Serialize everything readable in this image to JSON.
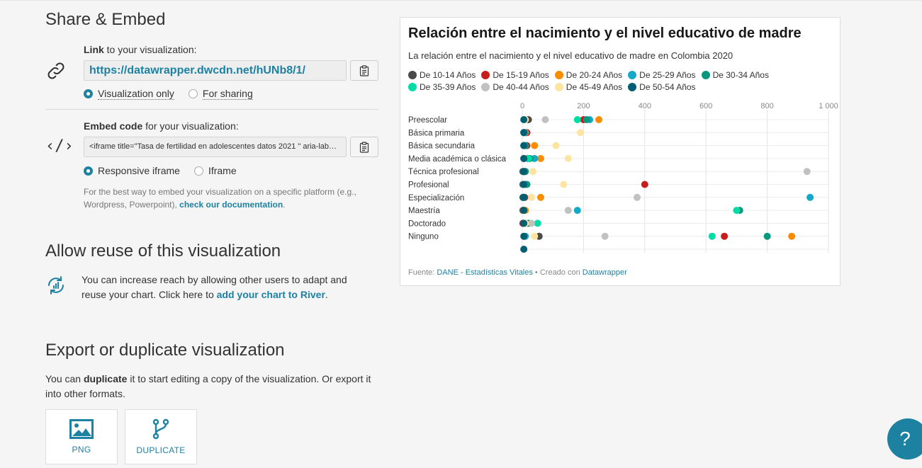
{
  "share": {
    "heading": "Share & Embed",
    "link_label_bold": "Link",
    "link_label_rest": " to your visualization:",
    "url": "https://datawrapper.dwcdn.net/hUNb8/1/",
    "link_options": [
      "Visualization only",
      "For sharing"
    ],
    "link_selected": "Visualization only",
    "embed_label_bold": "Embed code",
    "embed_label_rest": " for your visualization:",
    "embed_code": "<iframe title=\"Tasa de fertilidad en adolescentes datos 2021 \" aria-label=\"Dot Plot\"",
    "embed_options": [
      "Responsive iframe",
      "Iframe"
    ],
    "embed_selected": "Responsive iframe",
    "hint_text": "For the best way to embed your visualization on a specific platform (e.g., Wordpress, Powerpoint), ",
    "hint_link": "check our documentation",
    "hint_end": "."
  },
  "reuse": {
    "heading": "Allow reuse of this visualization",
    "text": "You can increase reach by allowing other users to adapt and reuse your chart. Click here to ",
    "link": "add your chart to River",
    "end": "."
  },
  "export": {
    "heading": "Export or duplicate visualization",
    "text_pre": "You can ",
    "text_bold": "duplicate",
    "text_post": " it to start editing a copy of the visualization. Or export it into other formats.",
    "png_label": "PNG",
    "duplicate_label": "DUPLICATE"
  },
  "help_label": "?",
  "chart_data": {
    "type": "scatter",
    "title": "Relación entre el nacimiento y el nivel educativo de madre",
    "subtitle": "La relación entre el nacimiento y el nivel educativo de madre en Colombia 2020",
    "xlim": [
      0,
      1000
    ],
    "xticks": [
      0,
      200,
      400,
      600,
      800,
      1000
    ],
    "xtick_labels": [
      "0",
      "200",
      "400",
      "600",
      "800",
      "1 000"
    ],
    "categories": [
      "Preescolar",
      "Básica primaria",
      "Básica secundaria",
      "Media académica o clásica",
      "Técnica profesional",
      "Profesional",
      "Especialización",
      "Maestría",
      "Doctorado",
      "Ninguno",
      ""
    ],
    "legend_position": "top",
    "grid": true,
    "series": [
      {
        "name": "De 10-14 Años",
        "color": "#4a4a4a",
        "values": [
          20,
          5,
          5,
          5,
          2,
          2,
          2,
          2,
          2,
          55,
          0
        ]
      },
      {
        "name": "De 15-19 Años",
        "color": "#c71e1d",
        "values": [
          200,
          15,
          15,
          18,
          8,
          400,
          8,
          4,
          3,
          660,
          0
        ]
      },
      {
        "name": "De 20-24 Años",
        "color": "#fa8c00",
        "values": [
          250,
          10,
          40,
          60,
          10,
          10,
          60,
          10,
          10,
          880,
          0
        ]
      },
      {
        "name": "De 25-29 Años",
        "color": "#15a9c7",
        "values": [
          220,
          8,
          10,
          40,
          5,
          10,
          940,
          180,
          10,
          10,
          0
        ]
      },
      {
        "name": "De 30-34 Años",
        "color": "#09987d",
        "values": [
          210,
          5,
          10,
          25,
          10,
          15,
          5,
          710,
          20,
          800,
          0
        ]
      },
      {
        "name": "De 35-39 Años",
        "color": "#00dca6",
        "values": [
          180,
          5,
          5,
          20,
          5,
          5,
          5,
          700,
          50,
          620,
          0
        ]
      },
      {
        "name": "De 40-44 Años",
        "color": "#c1c1c1",
        "values": [
          75,
          5,
          5,
          5,
          930,
          5,
          375,
          150,
          30,
          270,
          0
        ]
      },
      {
        "name": "De 45-49 Años",
        "color": "#fde5a1",
        "values": [
          10,
          190,
          110,
          150,
          35,
          135,
          30,
          5,
          10,
          40,
          0
        ]
      },
      {
        "name": "De 50-54 Años",
        "color": "#005f73",
        "values": [
          5,
          5,
          5,
          5,
          5,
          5,
          5,
          5,
          5,
          5,
          5
        ]
      }
    ],
    "source_label": "Fuente: ",
    "source_name": "DANE - Estadísticas Vitales",
    "credit_pre": " • Creado con ",
    "credit_name": "Datawrapper"
  }
}
